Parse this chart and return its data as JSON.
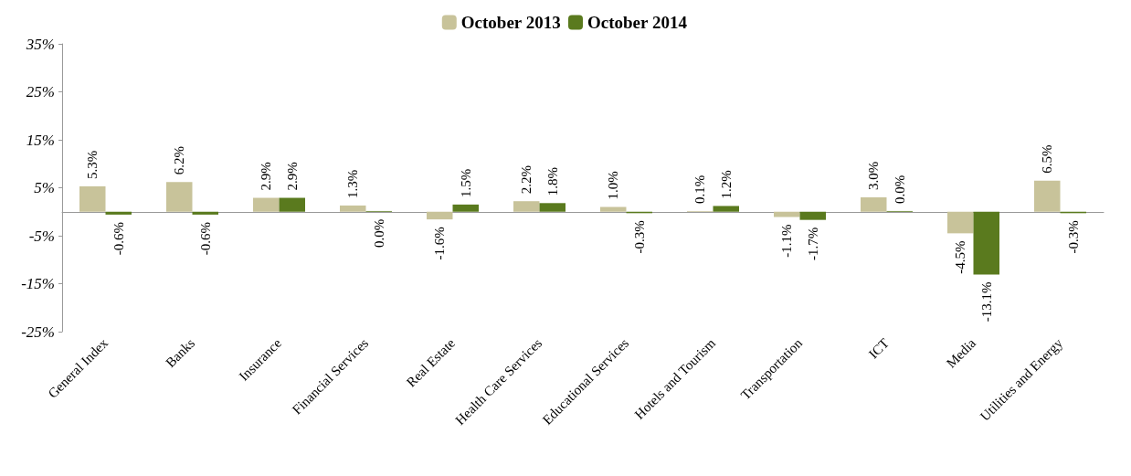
{
  "chart_data": {
    "type": "bar",
    "categories": [
      "General Index",
      "Banks",
      "Insurance",
      "Financial Services",
      "Real Estate",
      "Health Care Services",
      "Educational Services",
      "Hotels and Tourism",
      "Transportation",
      "ICT",
      "Media",
      "Utilities and Energy"
    ],
    "series": [
      {
        "name": "October 2013",
        "color": "#c8c39a",
        "values": [
          5.3,
          6.2,
          2.9,
          1.3,
          -1.6,
          2.2,
          1.0,
          0.1,
          -1.1,
          3.0,
          -4.5,
          6.5
        ],
        "value_labels": [
          "5.3%",
          "6.2%",
          "2.9%",
          "1.3%",
          "-1.6%",
          "2.2%",
          "1.0%",
          "0.1%",
          "-1.1%",
          "3.0%",
          "-4.5%",
          "6.5%"
        ]
      },
      {
        "name": "October 2014",
        "color": "#5a7a1e",
        "values": [
          -0.6,
          -0.6,
          2.9,
          0.0,
          1.5,
          1.8,
          -0.3,
          1.2,
          -1.7,
          0.0,
          -13.1,
          -0.3
        ],
        "value_labels": [
          "-0.6%",
          "-0.6%",
          "2.9%",
          "0.0%",
          "1.5%",
          "1.8%",
          "-0.3%",
          "1.2%",
          "-1.7%",
          "0.0%",
          "-13.1%",
          "-0.3%"
        ]
      }
    ],
    "ylim": [
      -25,
      35
    ],
    "yticks": [
      {
        "value": -25,
        "label": "-25%"
      },
      {
        "value": -15,
        "label": "-15%"
      },
      {
        "value": -5,
        "label": "-5%"
      },
      {
        "value": 5,
        "label": "5%"
      },
      {
        "value": 15,
        "label": "15%"
      },
      {
        "value": 25,
        "label": "25%"
      },
      {
        "value": 35,
        "label": "35%"
      }
    ],
    "legend": "top"
  }
}
